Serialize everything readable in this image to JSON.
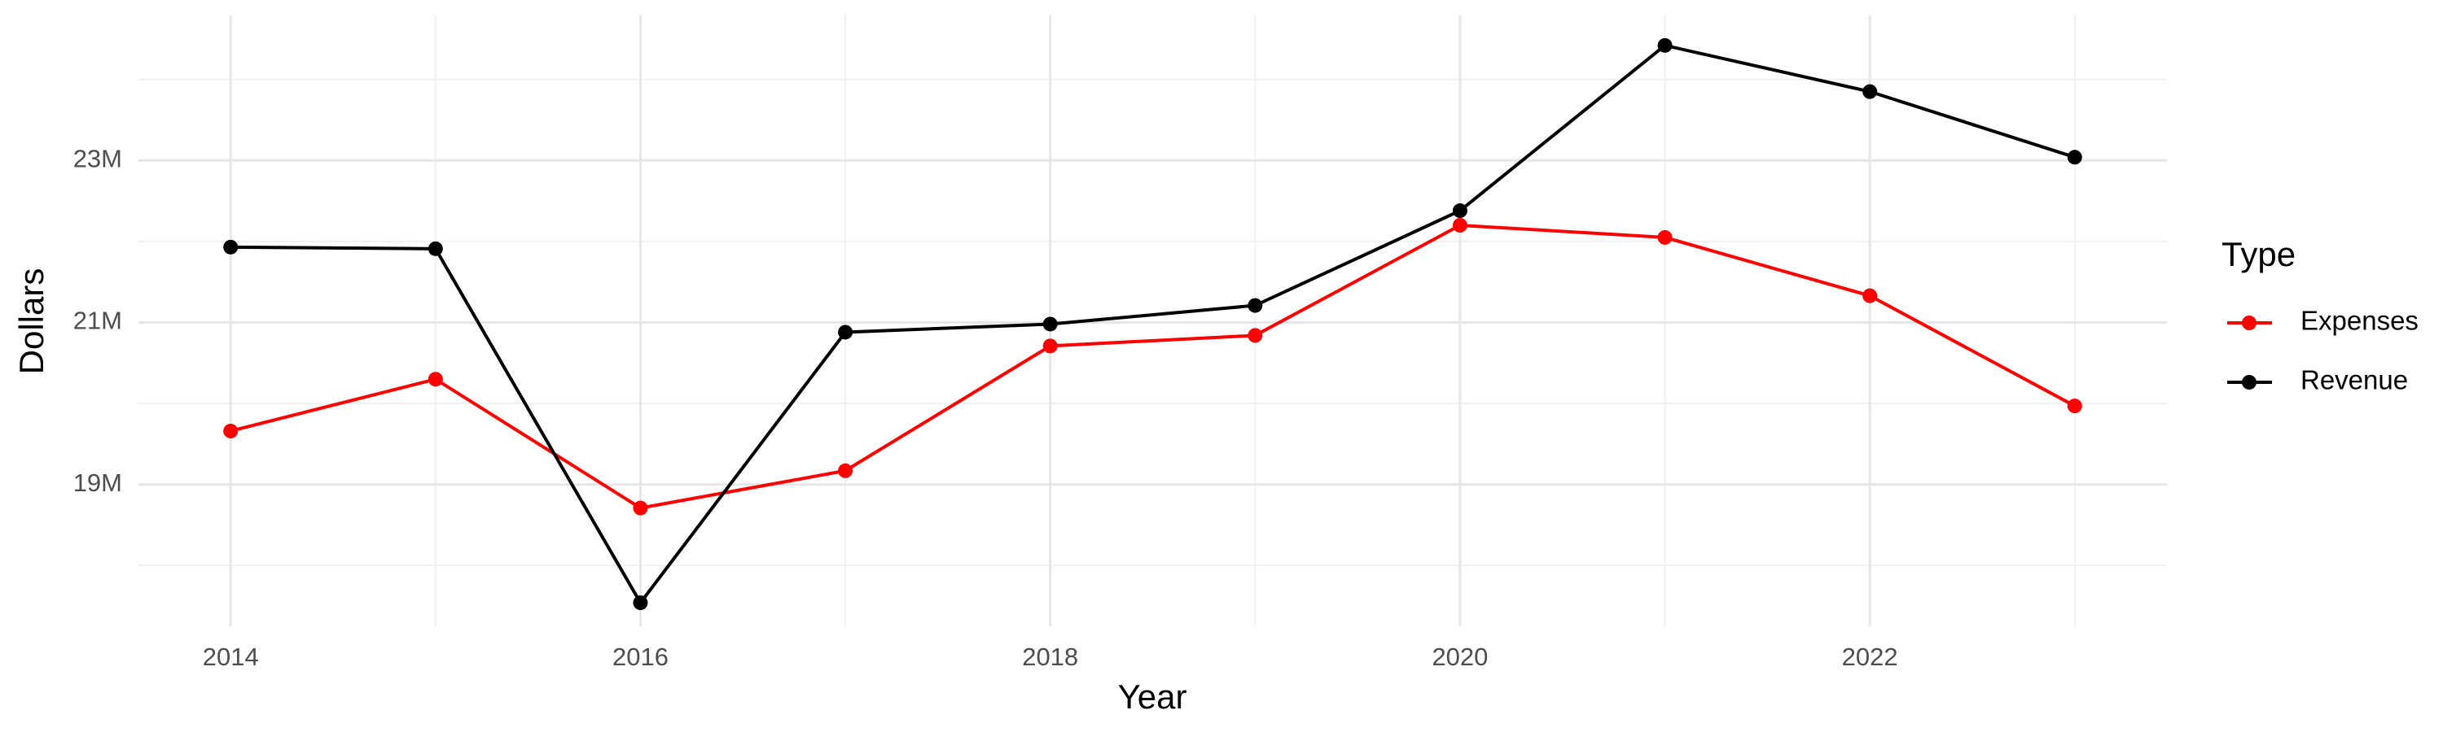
{
  "chart_data": {
    "type": "line",
    "x_label": "Year",
    "y_label": "Dollars",
    "legend_title": "Type",
    "x": [
      2014,
      2015,
      2016,
      2017,
      2018,
      2019,
      2020,
      2021,
      2022,
      2023
    ],
    "series": [
      {
        "name": "Expenses",
        "color": "#ff0000",
        "values": [
          19660000,
          20300000,
          18710000,
          19170000,
          20710000,
          20840000,
          22200000,
          22050000,
          21330000,
          19970000
        ]
      },
      {
        "name": "Revenue",
        "color": "#000000",
        "values": [
          21930000,
          21910000,
          17540000,
          20880000,
          20980000,
          21210000,
          22380000,
          24420000,
          23850000,
          23040000
        ]
      }
    ],
    "xlim": [
      2013.55,
      2023.45
    ],
    "xticks": [
      2014,
      2016,
      2018,
      2020,
      2022
    ],
    "ylim": [
      17250000,
      24790000
    ],
    "yticks": [
      {
        "value": 19000000,
        "label": "19M"
      },
      {
        "value": 21000000,
        "label": "21M"
      },
      {
        "value": 23000000,
        "label": "23M"
      }
    ],
    "grid": true,
    "legend": "right"
  }
}
